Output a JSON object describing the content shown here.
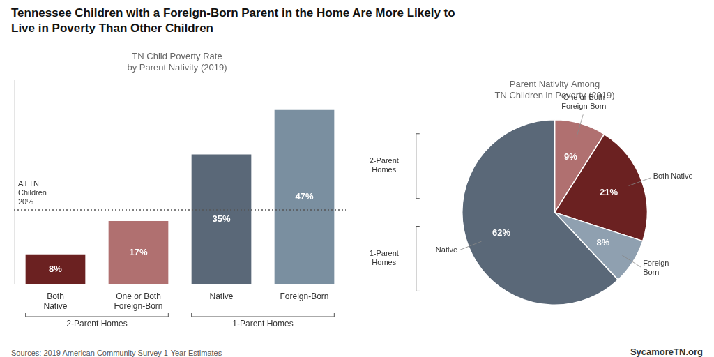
{
  "title": "Tennessee Children with a Foreign-Born Parent in the Home Are More Likely to\nLive in Poverty Than Other Children",
  "annotations": [
    "Sources: 2019 American Community Survey 1-Year Estimates",
    "SycamoreTN.org"
  ],
  "chart_data": [
    {
      "type": "bar",
      "title": "TN Child Poverty Rate\nby Parent Nativity (2019)",
      "categories": [
        "Both\nNative",
        "One or Both\nForeign-Born",
        "Native",
        "Foreign-Born"
      ],
      "values": [
        8,
        17,
        35,
        47
      ],
      "value_labels": [
        "8%",
        "17%",
        "35%",
        "47%"
      ],
      "data_labels": true,
      "colors": [
        "#6b2121",
        "#b07070",
        "#5a6878",
        "#7a8fa0"
      ],
      "ylim": [
        0,
        55
      ],
      "yticks": [],
      "grid": false,
      "tick_labels": "x",
      "reference_line": {
        "value": 20,
        "label": "All TN\nChildren\n20%"
      },
      "groups": [
        {
          "name": "2-Parent Homes",
          "members": [
            "Both\nNative",
            "One or Both\nForeign-Born"
          ]
        },
        {
          "name": "1-Parent Homes",
          "members": [
            "Native",
            "Foreign-Born"
          ]
        }
      ]
    },
    {
      "type": "pie",
      "title": "Parent Nativity Among\nTN Children in Poverty (2019)",
      "categories": [
        "One or Both\nForeign-Born",
        "Both Native",
        "Foreign-\nBorn",
        "Native"
      ],
      "values": [
        9,
        21,
        8,
        62
      ],
      "value_labels": [
        "9%",
        "21%",
        "8%",
        "62%"
      ],
      "data_labels": true,
      "colors": [
        "#b07070",
        "#6b2121",
        "#8fa0b0",
        "#5a6878"
      ],
      "groups": [
        {
          "name": "2-Parent\nHomes",
          "members": [
            "One or Both\nForeign-Born",
            "Both Native"
          ]
        },
        {
          "name": "1-Parent\nHomes",
          "members": [
            "Foreign-\nBorn",
            "Native"
          ]
        }
      ]
    }
  ]
}
